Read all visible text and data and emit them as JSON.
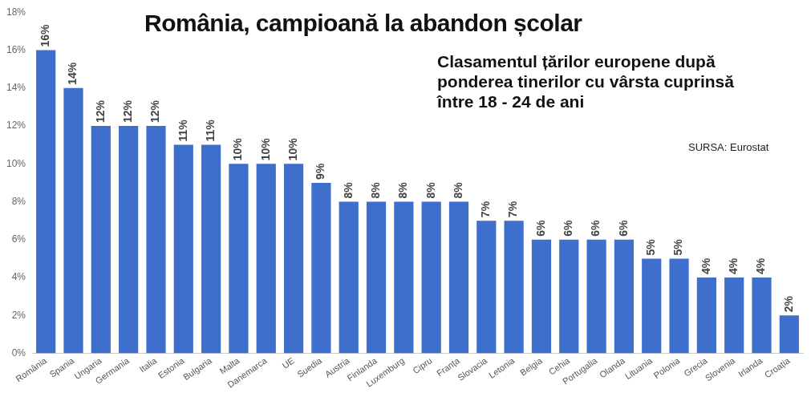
{
  "chart_data": {
    "type": "bar",
    "title": "România, campioană la abandon școlar",
    "subtitle": "Clasamentul țărilor europene după ponderea tinerilor cu vârsta cuprinsă între 18 - 24 de ani",
    "annotations": [
      "SURSA: Eurostat"
    ],
    "categories": [
      "România",
      "Spania",
      "Ungaria",
      "Germania",
      "Italia",
      "Estonia",
      "Bulgaria",
      "Malta",
      "Danemarca",
      "UE",
      "Suedia",
      "Austria",
      "Finlanda",
      "Luxemburg",
      "Cipru",
      "Franța",
      "Slovacia",
      "Letonia",
      "Belgia",
      "Cehia",
      "Portugalia",
      "Olanda",
      "Lituania",
      "Polonia",
      "Grecia",
      "Slovenia",
      "Irlanda",
      "Croația"
    ],
    "values": [
      16,
      14,
      12,
      12,
      12,
      11,
      11,
      10,
      10,
      10,
      9,
      8,
      8,
      8,
      8,
      8,
      7,
      7,
      6,
      6,
      6,
      6,
      5,
      5,
      4,
      4,
      4,
      2
    ],
    "value_labels": [
      "16%",
      "14%",
      "12%",
      "12%",
      "12%",
      "11%",
      "11%",
      "10%",
      "10%",
      "10%",
      "9%",
      "8%",
      "8%",
      "8%",
      "8%",
      "8%",
      "7%",
      "7%",
      "6%",
      "6%",
      "6%",
      "6%",
      "5%",
      "5%",
      "4%",
      "4%",
      "4%",
      "2%"
    ],
    "color": "#3f6fcc",
    "ylim": [
      0,
      18
    ],
    "yticks": [
      {
        "value": 0,
        "label": "0%"
      },
      {
        "value": 2,
        "label": "2%"
      },
      {
        "value": 4,
        "label": "4%"
      },
      {
        "value": 6,
        "label": "6%"
      },
      {
        "value": 8,
        "label": "8%"
      },
      {
        "value": 10,
        "label": "10%"
      },
      {
        "value": 12,
        "label": "12%"
      },
      {
        "value": 14,
        "label": "14%"
      },
      {
        "value": 16,
        "label": "16%"
      },
      {
        "value": 18,
        "label": "18%"
      }
    ],
    "grid": false,
    "legend": false
  }
}
